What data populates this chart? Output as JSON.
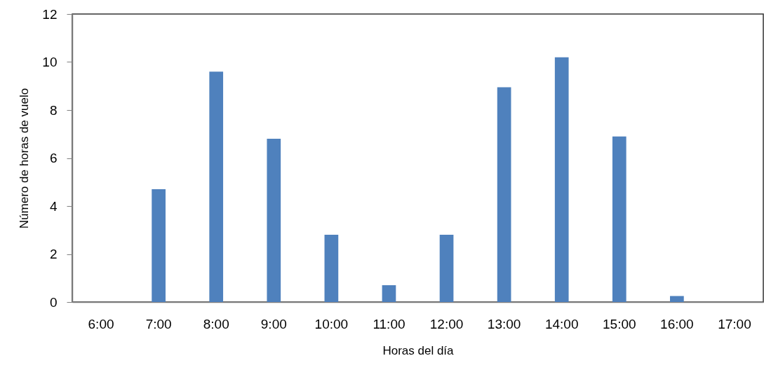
{
  "chart_data": {
    "type": "bar",
    "xlabel": "Horas del día",
    "ylabel": "Número de horas de vuelo",
    "categories": [
      "6:00",
      "7:00",
      "8:00",
      "9:00",
      "10:00",
      "11:00",
      "12:00",
      "13:00",
      "14:00",
      "15:00",
      "16:00",
      "17:00"
    ],
    "values": [
      0,
      4.7,
      9.6,
      6.8,
      2.8,
      0.7,
      2.8,
      8.95,
      10.2,
      6.9,
      0.25,
      0
    ],
    "color": "#4f81bd",
    "ylim": [
      0,
      12
    ],
    "yticks": [
      0,
      2,
      4,
      6,
      8,
      10,
      12
    ],
    "grid": false
  }
}
